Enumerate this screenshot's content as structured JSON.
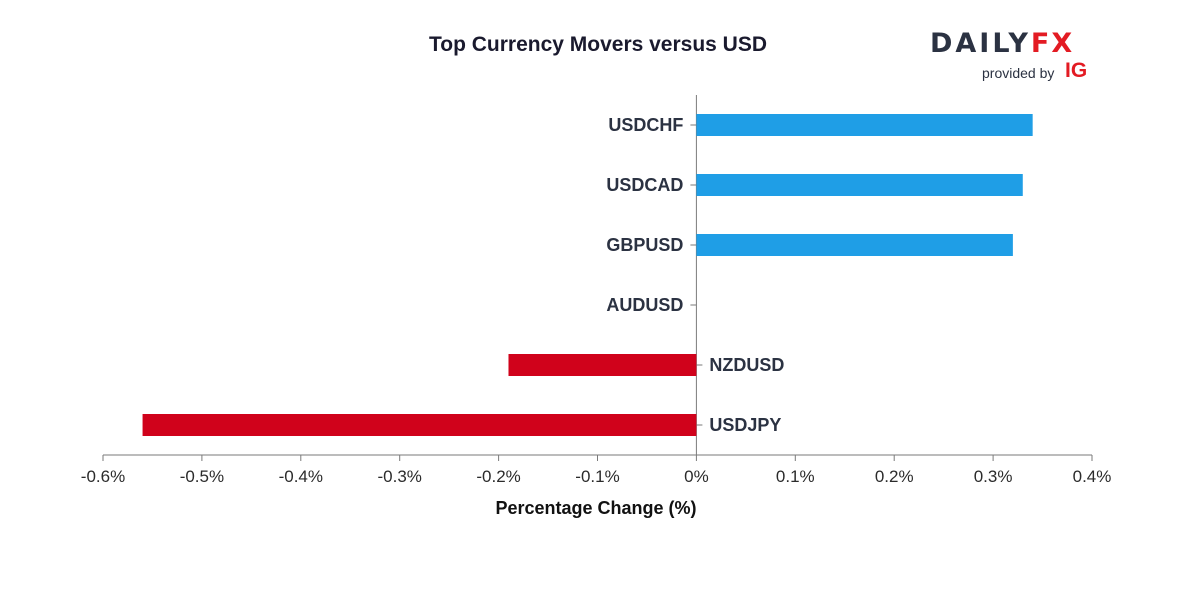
{
  "chart_data": {
    "type": "bar",
    "orientation": "horizontal",
    "title": "Top Currency Movers versus USD",
    "xlabel": "Percentage Change (%)",
    "ylabel": "",
    "xlim": [
      -0.6,
      0.4
    ],
    "xticks": [
      -0.6,
      -0.5,
      -0.4,
      -0.3,
      -0.2,
      -0.1,
      0,
      0.1,
      0.2,
      0.3,
      0.4
    ],
    "xtick_labels": [
      "-0.6%",
      "-0.5%",
      "-0.4%",
      "-0.3%",
      "-0.2%",
      "-0.1%",
      "0%",
      "0.1%",
      "0.2%",
      "0.3%",
      "0.4%"
    ],
    "categories": [
      "USDCHF",
      "USDCAD",
      "GBPUSD",
      "AUDUSD",
      "NZDUSD",
      "USDJPY"
    ],
    "values": [
      0.34,
      0.33,
      0.32,
      0.0,
      -0.19,
      -0.56
    ],
    "colors": {
      "positive": "#1f9ee6",
      "negative": "#d0021b",
      "axis": "#7a7a7a"
    }
  },
  "branding": {
    "logo_word_main": "DAILY",
    "logo_word_accent": "FX",
    "provided_by": "provided by",
    "ig": "IG"
  }
}
